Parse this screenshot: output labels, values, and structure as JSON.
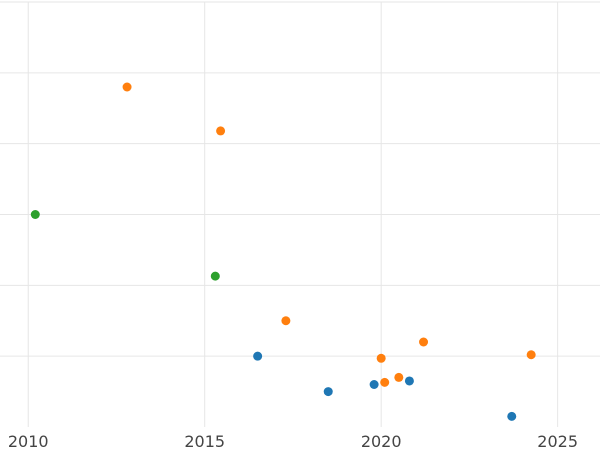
{
  "chart_data": {
    "type": "scatter",
    "title": "",
    "xlabel": "",
    "ylabel": "",
    "xlim": [
      2009.2,
      2026.2
    ],
    "ylim": [
      0,
      6
    ],
    "grid": true,
    "legend": "none",
    "x_ticks": [
      {
        "value": 2010,
        "label": "2010"
      },
      {
        "value": 2015,
        "label": "2015"
      },
      {
        "value": 2020,
        "label": "2020"
      },
      {
        "value": 2025,
        "label": "2025"
      }
    ],
    "y_gridlines": [
      1,
      2,
      3,
      4,
      5,
      6
    ],
    "series": [
      {
        "color": "#1f77b4",
        "points": [
          {
            "x": 2016.5,
            "y": 1.0
          },
          {
            "x": 2018.5,
            "y": 0.5
          },
          {
            "x": 2019.8,
            "y": 0.6
          },
          {
            "x": 2020.8,
            "y": 0.65
          },
          {
            "x": 2023.7,
            "y": 0.15
          }
        ]
      },
      {
        "color": "#ff7f0e",
        "points": [
          {
            "x": 2012.8,
            "y": 4.8
          },
          {
            "x": 2015.45,
            "y": 4.18
          },
          {
            "x": 2017.3,
            "y": 1.5
          },
          {
            "x": 2020.0,
            "y": 0.97
          },
          {
            "x": 2020.1,
            "y": 0.63
          },
          {
            "x": 2020.5,
            "y": 0.7
          },
          {
            "x": 2021.2,
            "y": 1.2
          },
          {
            "x": 2024.25,
            "y": 1.02
          }
        ]
      },
      {
        "color": "#2ca02c",
        "points": [
          {
            "x": 2010.2,
            "y": 3.0
          },
          {
            "x": 2015.3,
            "y": 2.13
          }
        ]
      }
    ]
  }
}
